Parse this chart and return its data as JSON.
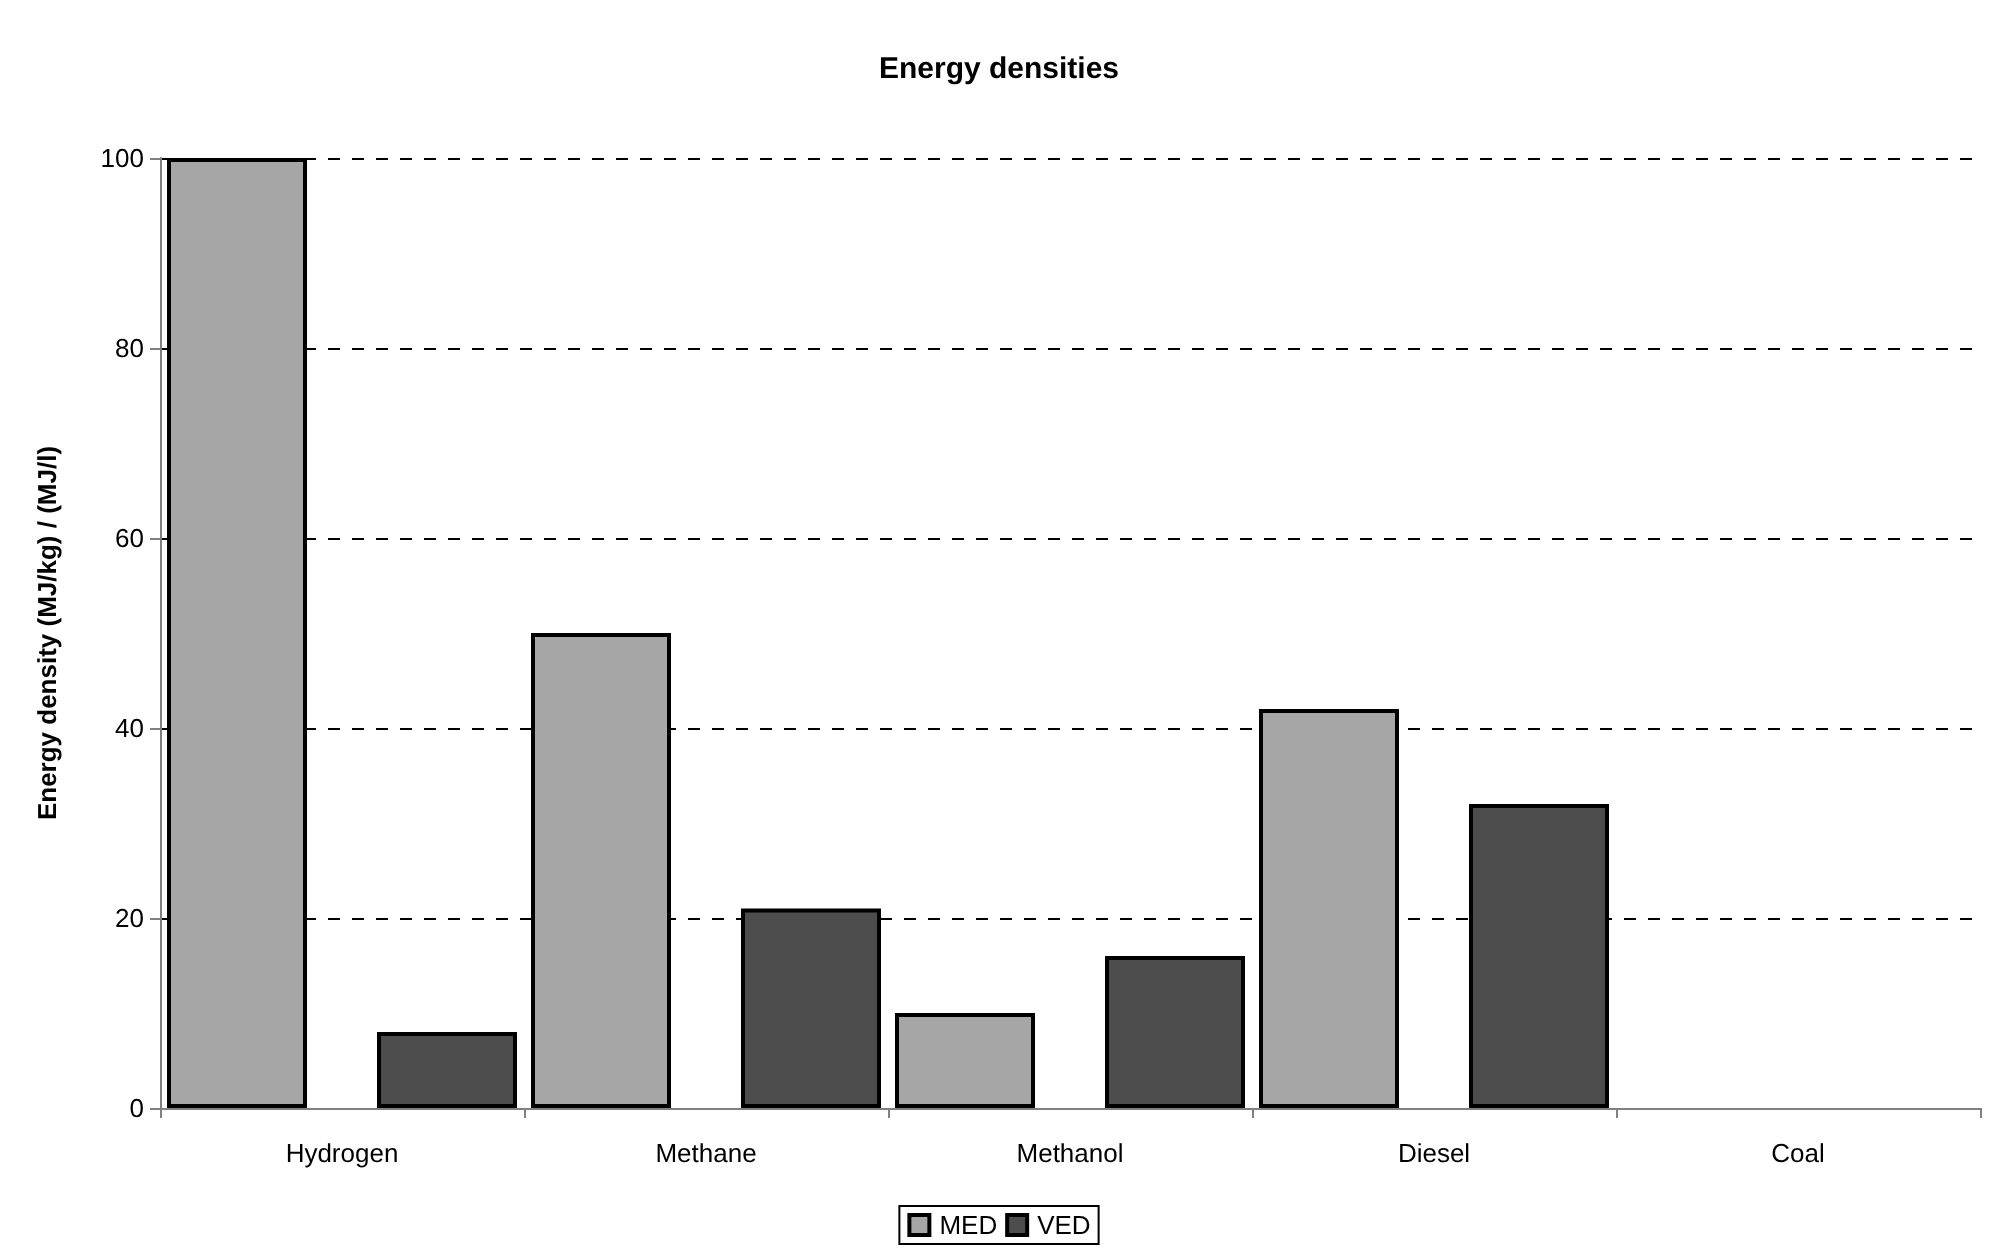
{
  "chart_data": {
    "type": "bar",
    "title": "Energy densities",
    "ylabel": "Energy density (MJ/kg) / (MJ/l)",
    "categories": [
      "Hydrogen",
      "Methane",
      "Methanol",
      "Diesel",
      "Coal"
    ],
    "series": [
      {
        "name": "MED",
        "color": "#a6a6a6",
        "values": [
          100,
          50,
          10,
          42,
          null
        ]
      },
      {
        "name": "VED",
        "color": "#4d4d4d",
        "values": [
          8,
          21,
          16,
          32,
          null
        ]
      }
    ],
    "ylim": [
      0,
      100
    ],
    "yticks": [
      0,
      20,
      40,
      60,
      80,
      100
    ],
    "grid": "y",
    "legend": "bottom"
  }
}
